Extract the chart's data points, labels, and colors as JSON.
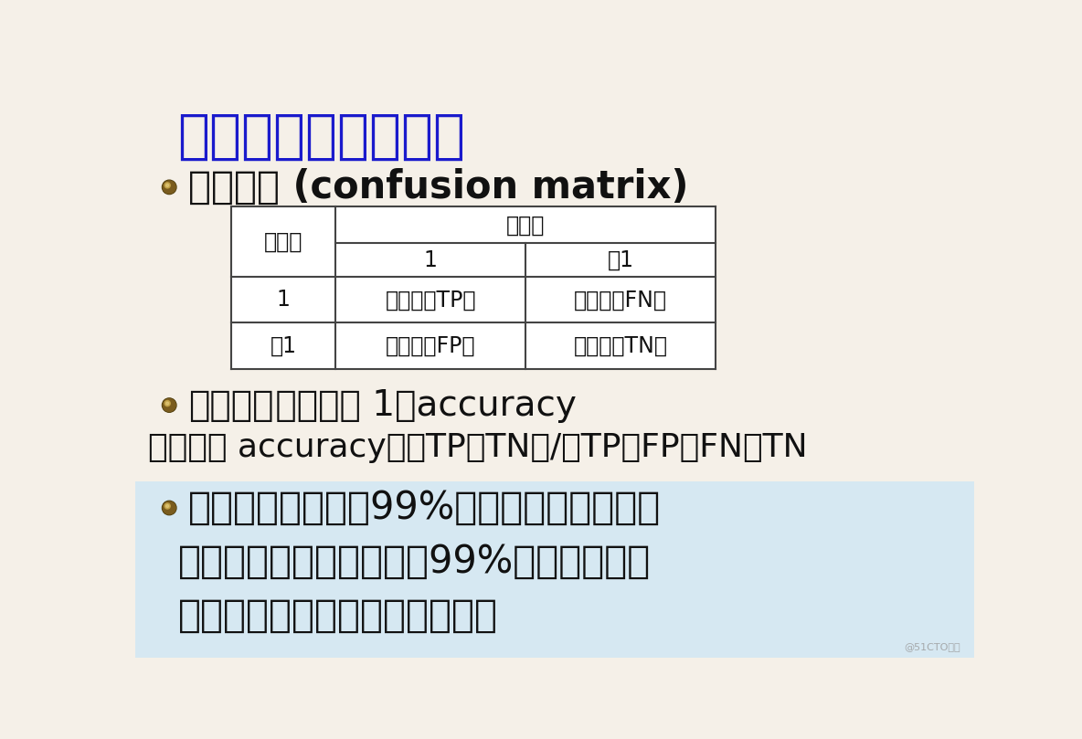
{
  "bg_color": "#f5f0e8",
  "title": "分类问题与评价准则",
  "title_color": "#1a1acc",
  "title_fontsize": 42,
  "bullet_color": "#7a5c1e",
  "section1_text": "混淆矩阵 (confusion matrix)",
  "section1_fontsize": 30,
  "table_header_row": "预测值",
  "table_col_labels": [
    "1",
    "－1"
  ],
  "table_row_labels": [
    "1",
    "－1"
  ],
  "table_row_header": "真实值",
  "table_cells": [
    [
      "真正类（TP）",
      "假负类（FN）"
    ],
    [
      "假正类（FP）",
      "真负类（TN）"
    ]
  ],
  "section2_bold": "总体指标",
  "section2_rest": " 错误率为 1－accuracy",
  "section2_fontsize": 28,
  "formula_text": "正确率为 accuracy＝（TP＋TN）/（TP＋FP＋FN＋TN",
  "formula_fontsize": 26,
  "section3_lines": [
    "若样本不平衡，如99%正例，只要简单把所",
    "有都判为正，那么正确率99%，但这个判别",
    "并不好。所以还需要其他指标。"
  ],
  "section3_fontsize": 30,
  "text_color": "#111111",
  "formula_color": "#111111",
  "table_border_color": "#444444",
  "table_bg": "#ffffff",
  "section3_bg": "#d6e8f2",
  "watermark": "@51CTO博客"
}
